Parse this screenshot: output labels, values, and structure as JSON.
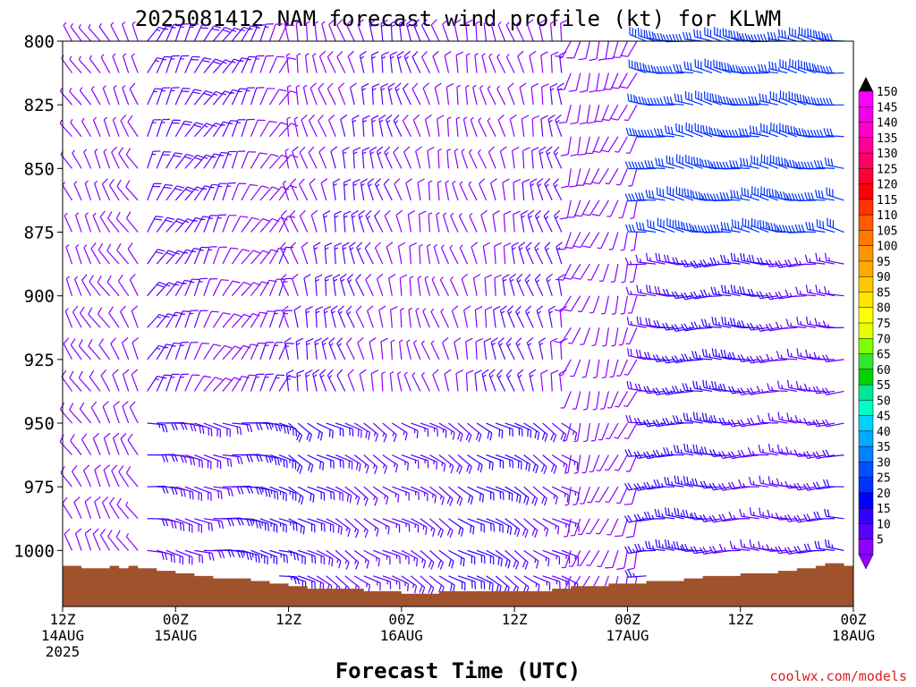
{
  "chart_data": {
    "type": "wind_barb_time_height",
    "title": "2025081412 NAM forecast wind profile (kt) for KLWM",
    "xlabel": "Forecast Time (UTC)",
    "ylabel": "",
    "x_ticks": [
      {
        "lines": [
          "12Z",
          "14AUG",
          "2025"
        ],
        "hour": 0
      },
      {
        "lines": [
          "00Z",
          "15AUG"
        ],
        "hour": 12
      },
      {
        "lines": [
          "12Z",
          ""
        ],
        "hour": 24
      },
      {
        "lines": [
          "00Z",
          "16AUG"
        ],
        "hour": 36
      },
      {
        "lines": [
          "12Z",
          ""
        ],
        "hour": 48
      },
      {
        "lines": [
          "00Z",
          "17AUG"
        ],
        "hour": 60
      },
      {
        "lines": [
          "12Z",
          ""
        ],
        "hour": 72
      },
      {
        "lines": [
          "00Z",
          "18AUG"
        ],
        "hour": 84
      }
    ],
    "y_ticks": [
      "800",
      "825",
      "850",
      "875",
      "900",
      "925",
      "950",
      "975",
      "1000"
    ],
    "ylim_hpa": [
      800,
      1022
    ],
    "xlim_hours": [
      0,
      84
    ],
    "x_step_hours": 1,
    "pressure_levels_hpa": [
      800,
      812.5,
      825,
      837.5,
      850,
      862.5,
      875,
      887.5,
      900,
      912.5,
      925,
      937.5,
      950,
      962.5,
      975,
      987.5,
      1000,
      1010
    ],
    "surface_pressure_hpa": {
      "hours": [
        0,
        2,
        4,
        5,
        6,
        7,
        8,
        10,
        12,
        14,
        16,
        18,
        20,
        22,
        24,
        26,
        28,
        30,
        32,
        34,
        36,
        38,
        40,
        42,
        44,
        46,
        48,
        50,
        52,
        54,
        56,
        58,
        60,
        62,
        64,
        66,
        68,
        70,
        72,
        74,
        76,
        78,
        80,
        81,
        82,
        83,
        84
      ],
      "values": [
        1006,
        1007,
        1007,
        1006,
        1007,
        1006,
        1007,
        1008,
        1009,
        1010,
        1011,
        1011,
        1012,
        1013,
        1014,
        1015,
        1015,
        1015,
        1016,
        1016,
        1017,
        1017,
        1016,
        1016,
        1016,
        1016,
        1016,
        1016,
        1015,
        1014,
        1014,
        1013,
        1013,
        1012,
        1012,
        1011,
        1010,
        1010,
        1009,
        1009,
        1008,
        1007,
        1006,
        1005,
        1005,
        1006,
        1007
      ]
    },
    "wind_regimes": [
      {
        "hours": [
          0,
          9
        ],
        "direction_deg": 330,
        "speed_kt": 8
      },
      {
        "hours": [
          9,
          24
        ],
        "direction_deg": 30,
        "speed_kt": 14,
        "low_level": {
          "below_hpa": 950,
          "direction_deg": 100,
          "speed_kt": 22
        }
      },
      {
        "hours": [
          24,
          54
        ],
        "direction_deg": 345,
        "speed_kt": 10,
        "low_level": {
          "below_hpa": 940,
          "direction_deg": 120,
          "speed_kt": 18
        }
      },
      {
        "hours": [
          54,
          62
        ],
        "direction_deg": 200,
        "speed_kt": 8
      },
      {
        "hours": [
          62,
          84
        ],
        "direction_deg": 270,
        "speed_kt": 20,
        "upper_level": {
          "above_hpa": 880,
          "direction_deg": 280,
          "speed_kt": 32
        }
      }
    ],
    "colorbar": {
      "labels": [
        "150",
        "145",
        "140",
        "135",
        "130",
        "125",
        "120",
        "115",
        "110",
        "105",
        "100",
        "95",
        "90",
        "85",
        "80",
        "75",
        "70",
        "65",
        "60",
        "55",
        "50",
        "45",
        "40",
        "35",
        "30",
        "25",
        "20",
        "15",
        "10",
        "5"
      ],
      "colors": [
        "#ff00ff",
        "#f000e8",
        "#ff00c8",
        "#ff0096",
        "#ff0064",
        "#ff0032",
        "#ff0000",
        "#ff3200",
        "#ff5a00",
        "#ff7800",
        "#ff9600",
        "#ffaa00",
        "#ffc800",
        "#ffe600",
        "#ffff00",
        "#e6ff00",
        "#80ff00",
        "#32e632",
        "#00d200",
        "#00e696",
        "#00ffc8",
        "#00d2ff",
        "#00aaff",
        "#0082ff",
        "#0050ff",
        "#0032ff",
        "#0000ff",
        "#3200ff",
        "#5a00ff",
        "#8c00ff"
      ]
    },
    "ground_color": "#a0522d",
    "credit": "coolwx.com/models"
  }
}
